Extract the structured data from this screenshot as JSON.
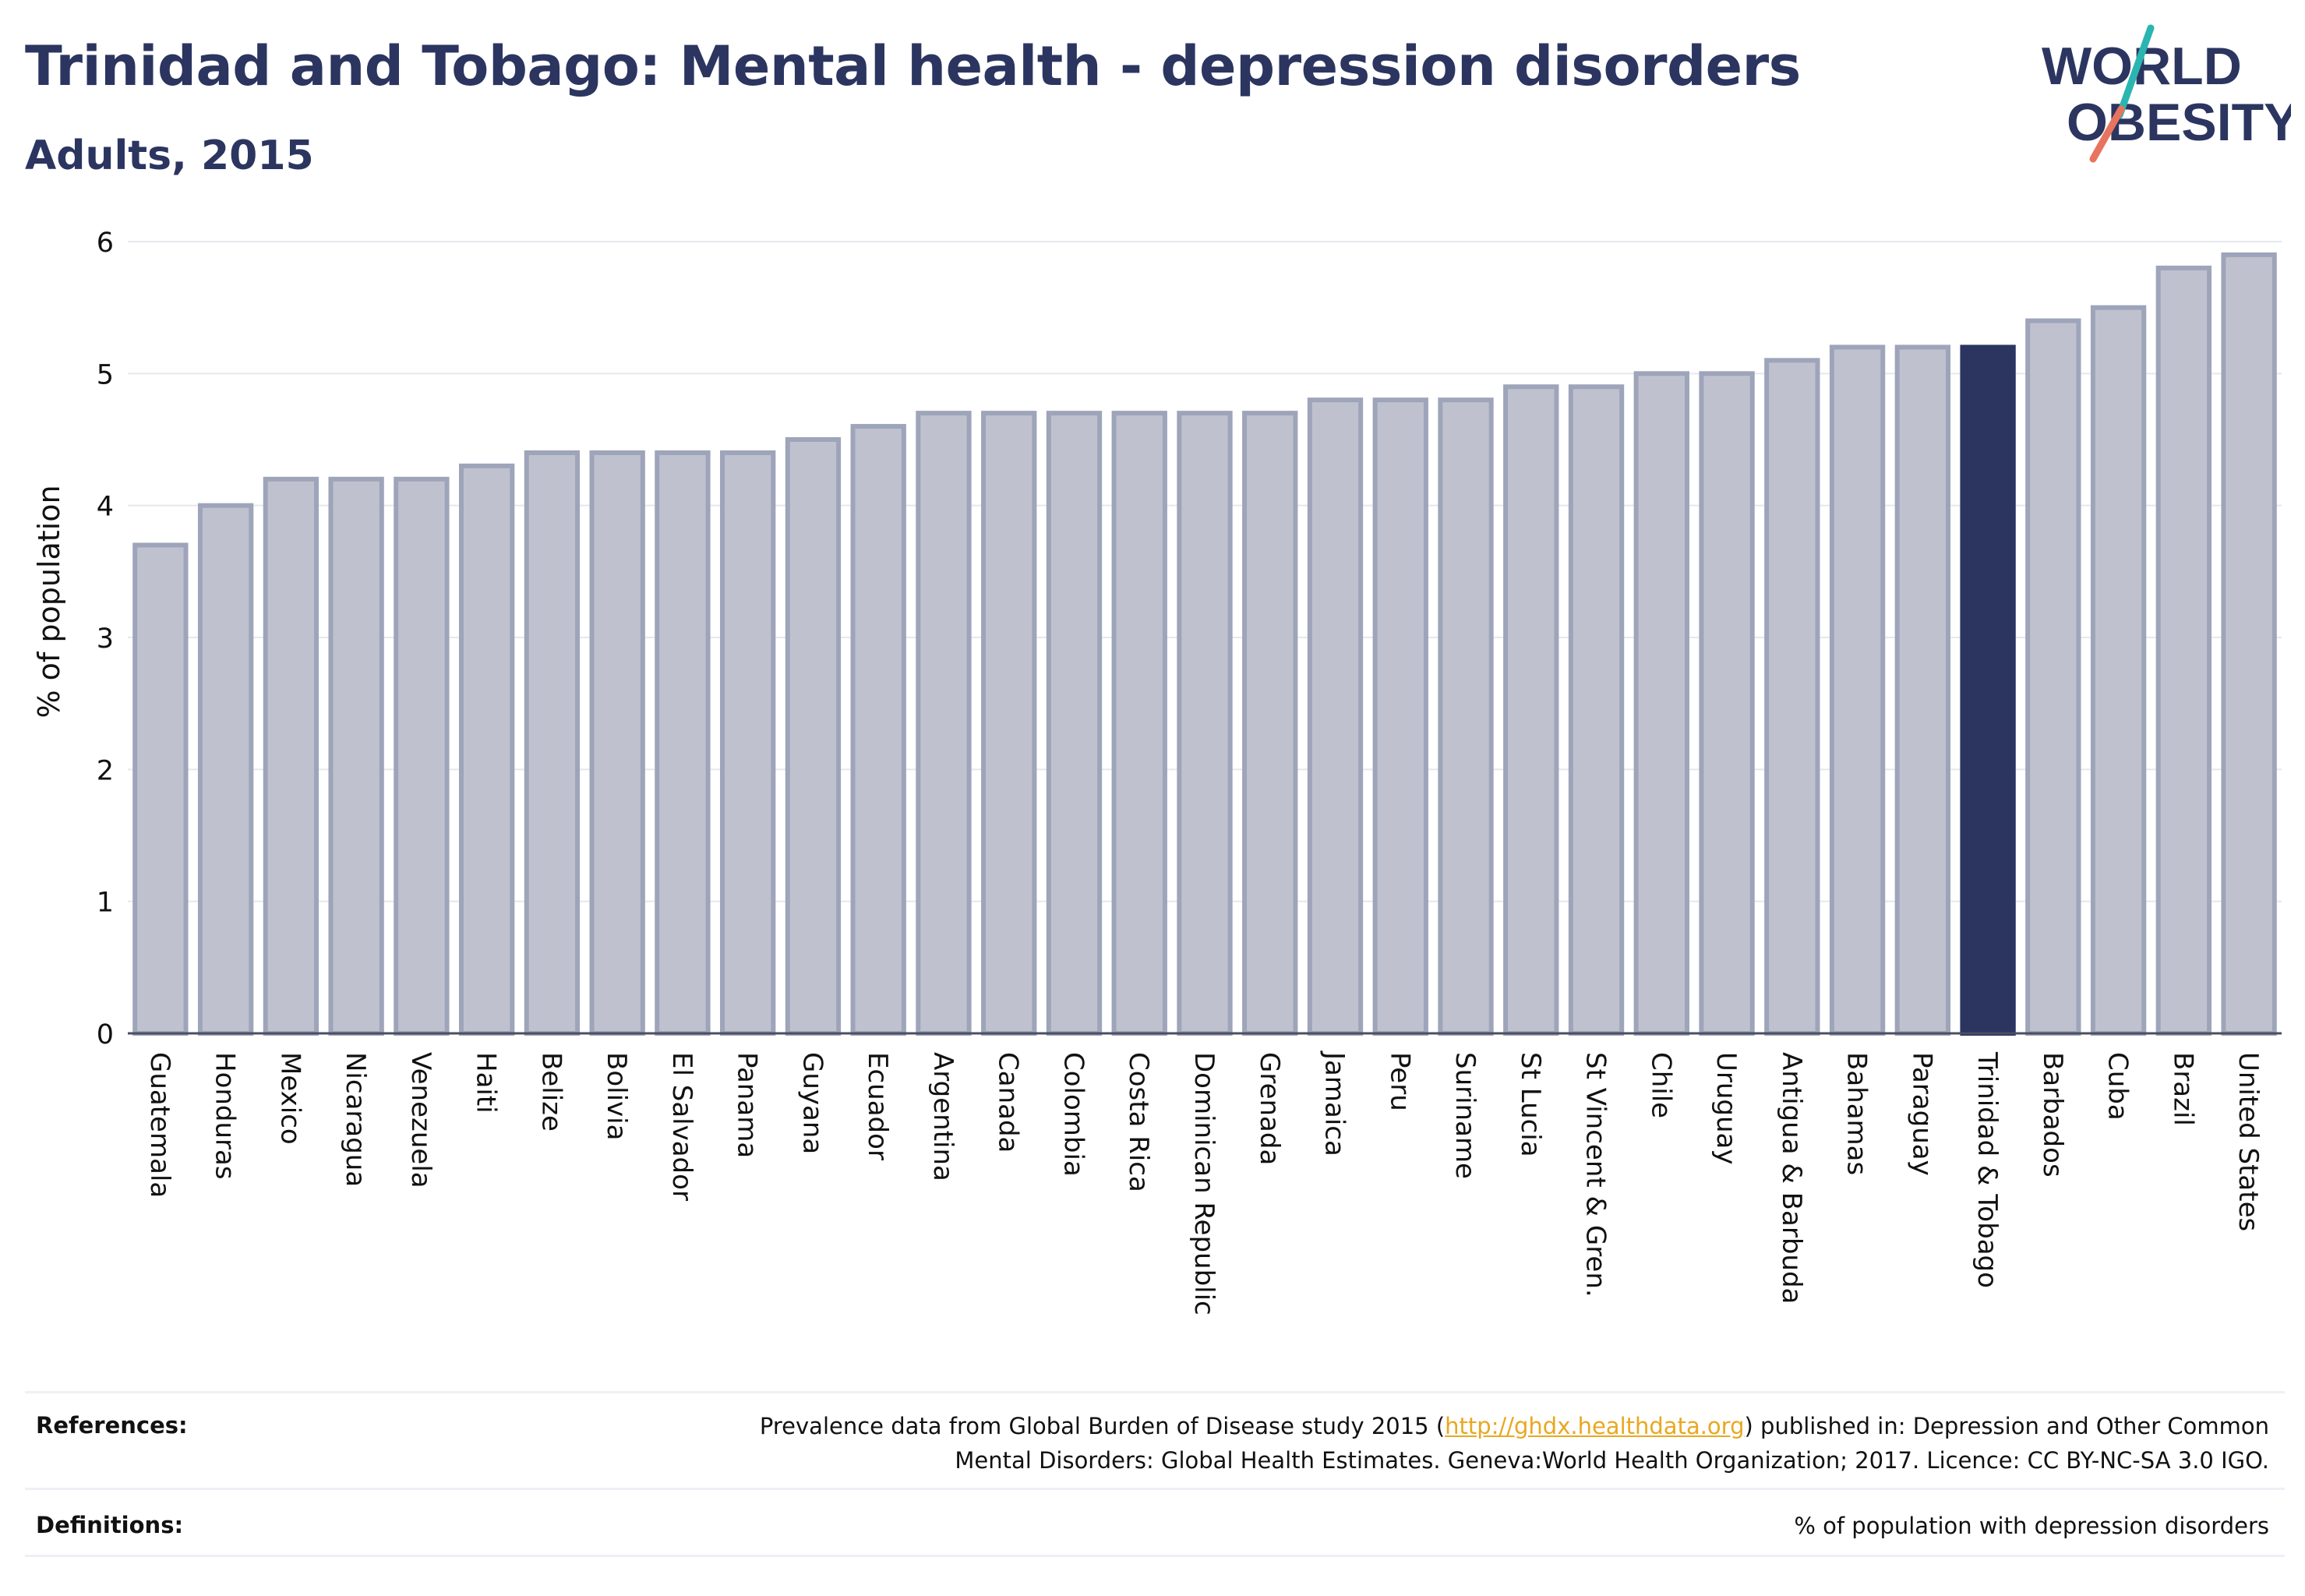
{
  "title": "Trinidad and Tobago: Mental health - depression disorders",
  "subtitle": "Adults, 2015",
  "logo": {
    "line1": "WORLD",
    "line2": "OBESITY",
    "accent_colors": [
      "#2bb5b0",
      "#e8735e"
    ]
  },
  "colors": {
    "highlight": "#2b3560",
    "bar_fill": "#bfc2ce",
    "bar_stroke": "#9ea4b9"
  },
  "chart_data": {
    "type": "bar",
    "ylabel": "% of population",
    "xlabel": "",
    "ylim": [
      0,
      6
    ],
    "yticks": [
      0,
      1,
      2,
      3,
      4,
      5,
      6
    ],
    "grid": true,
    "highlight": "Trinidad & Tobago",
    "categories": [
      "Guatemala",
      "Honduras",
      "Mexico",
      "Nicaragua",
      "Venezuela",
      "Haiti",
      "Belize",
      "Bolivia",
      "El Salvador",
      "Panama",
      "Guyana",
      "Ecuador",
      "Argentina",
      "Canada",
      "Colombia",
      "Costa Rica",
      "Dominican Republic",
      "Grenada",
      "Jamaica",
      "Peru",
      "Suriname",
      "St Lucia",
      "St Vincent & Gren.",
      "Chile",
      "Uruguay",
      "Antigua & Barbuda",
      "Bahamas",
      "Paraguay",
      "Trinidad & Tobago",
      "Barbados",
      "Cuba",
      "Brazil",
      "United States"
    ],
    "values": [
      3.7,
      4.0,
      4.2,
      4.2,
      4.2,
      4.3,
      4.4,
      4.4,
      4.4,
      4.4,
      4.5,
      4.6,
      4.7,
      4.7,
      4.7,
      4.7,
      4.7,
      4.7,
      4.8,
      4.8,
      4.8,
      4.9,
      4.9,
      5.0,
      5.0,
      5.1,
      5.2,
      5.2,
      5.2,
      5.4,
      5.5,
      5.8,
      5.9
    ]
  },
  "footer": {
    "references_label": "References:",
    "references_text_before": "Prevalence data from Global Burden of Disease study 2015 (",
    "references_link": "http://ghdx.healthdata.org",
    "references_text_after": ") published in: Depression and Other Common",
    "references_line2": "Mental Disorders: Global Health Estimates. Geneva:World Health Organization; 2017. Licence: CC BY-NC-SA 3.0 IGO.",
    "definitions_label": "Definitions:",
    "definitions_text": "% of population with depression disorders"
  }
}
